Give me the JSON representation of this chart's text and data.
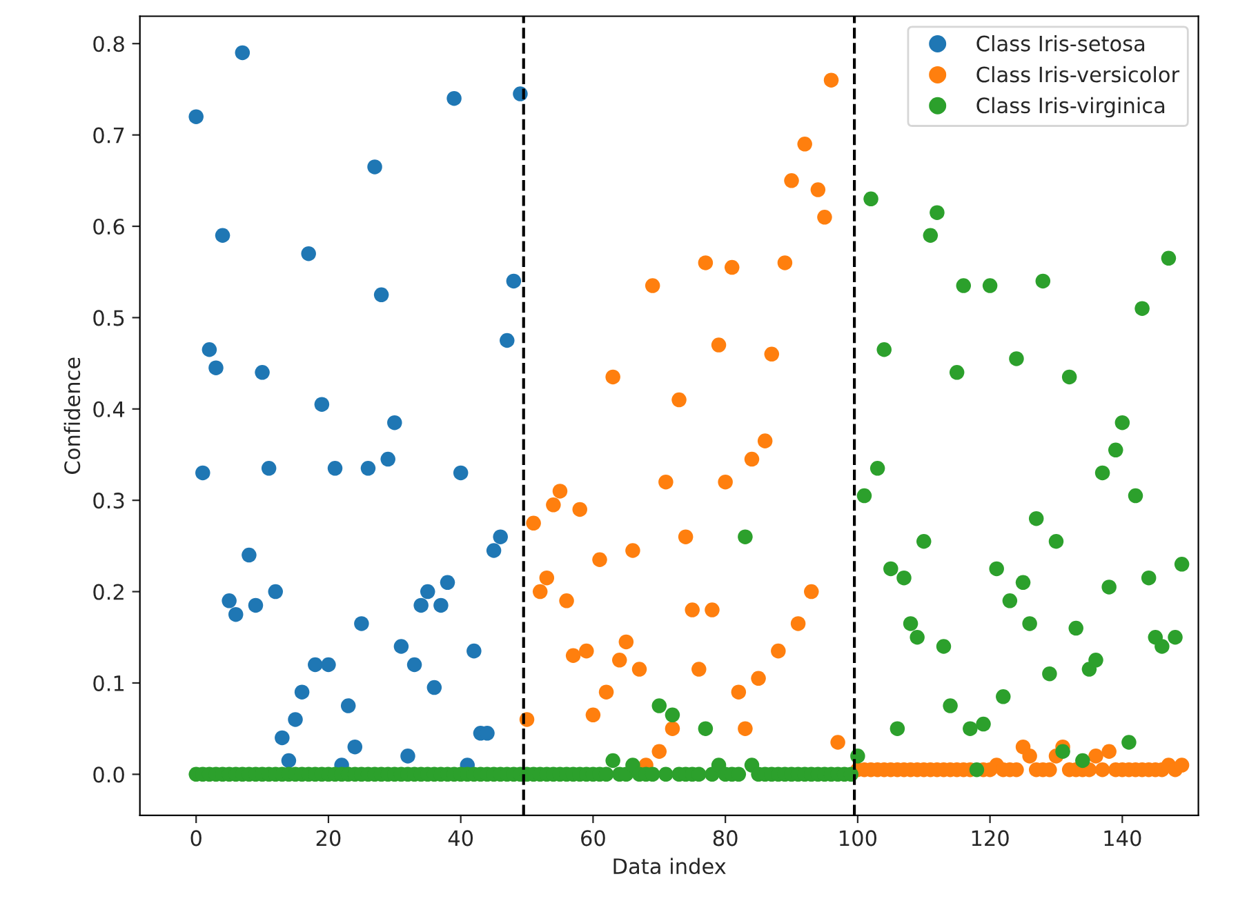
{
  "chart_data": {
    "type": "scatter",
    "xlabel": "Data index",
    "ylabel": "Confidence",
    "x": [
      0,
      1,
      2,
      3,
      4,
      5,
      6,
      7,
      8,
      9,
      10,
      11,
      12,
      13,
      14,
      15,
      16,
      17,
      18,
      19,
      20,
      21,
      22,
      23,
      24,
      25,
      26,
      27,
      28,
      29,
      30,
      31,
      32,
      33,
      34,
      35,
      36,
      37,
      38,
      39,
      40,
      41,
      42,
      43,
      44,
      45,
      46,
      47,
      48,
      49,
      50,
      51,
      52,
      53,
      54,
      55,
      56,
      57,
      58,
      59,
      60,
      61,
      62,
      63,
      64,
      65,
      66,
      67,
      68,
      69,
      70,
      71,
      72,
      73,
      74,
      75,
      76,
      77,
      78,
      79,
      80,
      81,
      82,
      83,
      84,
      85,
      86,
      87,
      88,
      89,
      90,
      91,
      92,
      93,
      94,
      95,
      96,
      97,
      98,
      99,
      100,
      101,
      102,
      103,
      104,
      105,
      106,
      107,
      108,
      109,
      110,
      111,
      112,
      113,
      114,
      115,
      116,
      117,
      118,
      119,
      120,
      121,
      122,
      123,
      124,
      125,
      126,
      127,
      128,
      129,
      130,
      131,
      132,
      133,
      134,
      135,
      136,
      137,
      138,
      139,
      140,
      141,
      142,
      143,
      144,
      145,
      146,
      147,
      148,
      149
    ],
    "series": [
      {
        "name": "Class Iris-setosa",
        "color": "#1f77b4",
        "values": [
          0.72,
          0.33,
          0.465,
          0.445,
          0.59,
          0.19,
          0.175,
          0.79,
          0.24,
          0.185,
          0.44,
          0.335,
          0.2,
          0.04,
          0.015,
          0.06,
          0.09,
          0.57,
          0.12,
          0.405,
          0.12,
          0.335,
          0.01,
          0.075,
          0.03,
          0.165,
          0.335,
          0.665,
          0.525,
          0.345,
          0.385,
          0.14,
          0.02,
          0.12,
          0.185,
          0.2,
          0.095,
          0.185,
          0.21,
          0.74,
          0.33,
          0.01,
          0.135,
          0.045,
          0.045,
          0.245,
          0.26,
          0.475,
          0.54,
          0.745,
          null,
          null,
          null,
          null,
          null,
          null,
          null,
          null,
          null,
          null,
          null,
          null,
          null,
          null,
          null,
          null,
          null,
          null,
          null,
          null,
          null,
          null,
          null,
          null,
          null,
          null,
          null,
          null,
          null,
          null,
          null,
          null,
          null,
          null,
          null,
          null,
          null,
          null,
          null,
          null,
          null,
          null,
          null,
          null,
          null,
          null,
          null,
          null,
          null,
          null,
          null,
          null,
          null,
          null,
          null,
          null,
          null,
          null,
          null,
          null,
          null,
          null,
          null,
          null,
          null,
          null,
          null,
          null,
          null,
          null,
          null,
          null,
          null,
          null,
          null,
          null,
          null,
          null,
          null,
          null,
          null,
          null,
          null,
          null,
          null,
          null,
          null,
          null,
          null,
          null,
          null,
          null,
          null,
          null,
          null,
          null,
          null,
          null,
          null,
          null
        ]
      },
      {
        "name": "Class Iris-versicolor",
        "color": "#ff7f0e",
        "values": [
          null,
          null,
          null,
          null,
          null,
          null,
          null,
          null,
          null,
          null,
          null,
          null,
          null,
          null,
          null,
          null,
          null,
          null,
          null,
          null,
          null,
          null,
          null,
          null,
          null,
          null,
          null,
          null,
          null,
          null,
          null,
          null,
          null,
          null,
          null,
          null,
          null,
          null,
          null,
          null,
          null,
          null,
          null,
          null,
          null,
          null,
          null,
          null,
          null,
          null,
          0.06,
          0.275,
          0.2,
          0.215,
          0.295,
          0.31,
          0.19,
          0.13,
          0.29,
          0.135,
          0.065,
          0.235,
          0.09,
          0.435,
          0.125,
          0.145,
          0.245,
          0.115,
          0.01,
          0.535,
          0.025,
          0.32,
          0.05,
          0.41,
          0.26,
          0.18,
          0.115,
          0.56,
          0.18,
          0.47,
          0.32,
          0.555,
          0.09,
          0.05,
          0.345,
          0.105,
          0.365,
          0.46,
          0.135,
          0.56,
          0.65,
          0.165,
          0.69,
          0.2,
          0.64,
          0.61,
          0.76,
          0.035,
          null,
          null,
          0.005,
          0.005,
          0.005,
          0.005,
          0.005,
          0.005,
          0.005,
          0.005,
          0.005,
          0.005,
          0.005,
          0.005,
          0.005,
          0.005,
          0.005,
          0.005,
          0.005,
          0.005,
          null,
          0.005,
          0.005,
          0.01,
          0.005,
          0.005,
          0.005,
          0.03,
          0.02,
          0.005,
          0.005,
          0.005,
          0.02,
          0.03,
          0.005,
          0.005,
          0.005,
          0.005,
          0.02,
          0.005,
          0.025,
          0.005,
          0.005,
          0.005,
          0.005,
          0.005,
          0.005,
          0.005,
          0.005,
          0.01,
          0.005,
          0.01
        ]
      },
      {
        "name": "Class Iris-virginica",
        "color": "#2ca02c",
        "values": [
          0,
          0,
          0,
          0,
          0,
          0,
          0,
          0,
          0,
          0,
          0,
          0,
          0,
          0,
          0,
          0,
          0,
          0,
          0,
          0,
          0,
          0,
          0,
          0,
          0,
          0,
          0,
          0,
          0,
          0,
          0,
          0,
          0,
          0,
          0,
          0,
          0,
          0,
          0,
          0,
          0,
          0,
          0,
          0,
          0,
          0,
          0,
          0,
          0,
          0,
          0,
          0,
          0,
          0,
          0,
          0,
          0,
          0,
          0,
          0,
          0,
          0,
          0,
          0.015,
          0,
          0,
          0.01,
          0,
          0,
          0,
          0.075,
          0,
          0.065,
          0,
          0,
          0,
          0,
          0.05,
          0,
          0.01,
          0,
          0,
          0,
          0.26,
          0.01,
          0,
          0,
          0,
          0,
          0,
          0,
          0,
          0,
          0,
          0,
          0,
          0,
          0,
          0,
          0,
          0.02,
          0.305,
          0.63,
          0.335,
          0.465,
          0.225,
          0.05,
          0.215,
          0.165,
          0.15,
          0.255,
          0.59,
          0.615,
          0.14,
          0.075,
          0.44,
          0.535,
          0.05,
          0.005,
          0.055,
          0.535,
          0.225,
          0.085,
          0.19,
          0.455,
          0.21,
          0.165,
          0.28,
          0.54,
          0.11,
          0.255,
          0.025,
          0.435,
          0.16,
          0.015,
          0.115,
          0.125,
          0.33,
          0.205,
          0.355,
          0.385,
          0.035,
          0.305,
          0.51,
          0.215,
          0.15,
          0.14,
          0.565,
          0.15,
          0.23
        ]
      }
    ],
    "ref_lines": [
      {
        "axis": "x",
        "value": 49.5,
        "color": "#000000",
        "line_style": "dashed"
      },
      {
        "axis": "x",
        "value": 99.5,
        "color": "#000000",
        "line_style": "dashed"
      }
    ],
    "marker": "circle",
    "xlim": [
      -8.5,
      151.5
    ],
    "xticks": [
      0,
      20,
      40,
      60,
      80,
      100,
      120,
      140
    ],
    "ylim": [
      -0.045,
      0.83
    ],
    "yticks": [
      {
        "value": 0,
        "label": "0.0"
      },
      {
        "value": 0.1,
        "label": "0.1"
      },
      {
        "value": 0.2,
        "label": "0.2"
      },
      {
        "value": 0.3,
        "label": "0.3"
      },
      {
        "value": 0.4,
        "label": "0.4"
      },
      {
        "value": 0.5,
        "label": "0.5"
      },
      {
        "value": 0.6,
        "label": "0.6"
      },
      {
        "value": 0.7,
        "label": "0.7"
      },
      {
        "value": 0.8,
        "label": "0.8"
      }
    ],
    "legend": "top right",
    "grid": false
  }
}
